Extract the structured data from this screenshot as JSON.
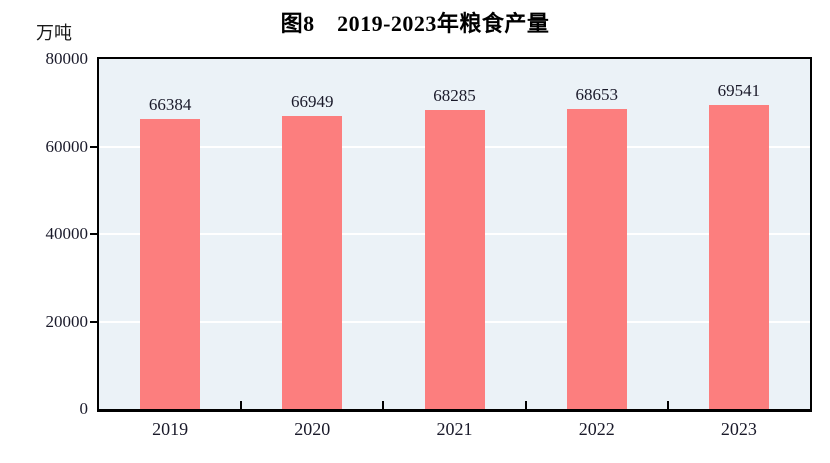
{
  "title": "图8　2019-2023年粮食产量",
  "unit_label": "万吨",
  "colors": {
    "bar": "#FC7E7E",
    "plot_background": "#EBF2F7",
    "gridline": "#FFFFFF",
    "axis": "#000000"
  },
  "chart_data": {
    "type": "bar",
    "categories": [
      "2019",
      "2020",
      "2021",
      "2022",
      "2023"
    ],
    "values": [
      66384,
      66949,
      68285,
      68653,
      69541
    ],
    "title": "图8　2019-2023年粮食产量",
    "xlabel": "",
    "ylabel": "万吨",
    "ylim": [
      0,
      80000
    ],
    "yticks": [
      0,
      20000,
      40000,
      60000,
      80000
    ],
    "grid": true,
    "gridline_color": "white",
    "legend_position": "none",
    "bar_labels_shown": true
  }
}
